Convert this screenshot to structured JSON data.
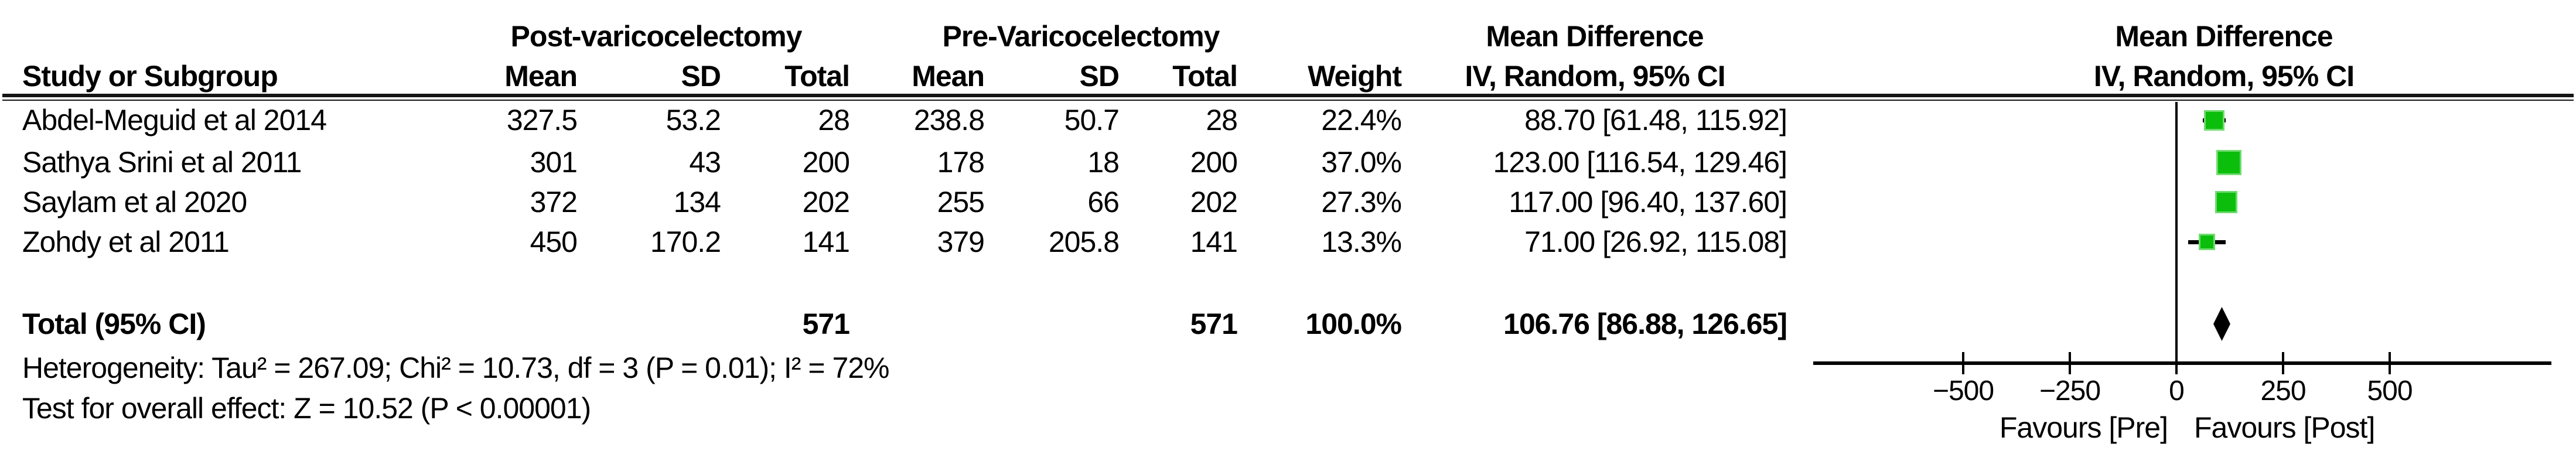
{
  "header": {
    "group_post": "Post-varicocelectomy",
    "group_pre": "Pre-Varicocelectomy",
    "study_col": "Study or Subgroup",
    "mean": "Mean",
    "sd": "SD",
    "total": "Total",
    "weight": "Weight",
    "md_title": "Mean Difference",
    "md_sub": "IV, Random, 95% CI",
    "plot_title": "Mean Difference",
    "plot_sub": "IV, Random, 95% CI"
  },
  "rows": [
    {
      "study": "Abdel-Meguid et al 2014",
      "mean1": "327.5",
      "sd1": "53.2",
      "total1": "28",
      "mean2": "238.8",
      "sd2": "50.7",
      "total2": "28",
      "weight": "22.4%",
      "ci": "88.70 [61.48, 115.92]"
    },
    {
      "study": "Sathya Srini et al 2011",
      "mean1": "301",
      "sd1": "43",
      "total1": "200",
      "mean2": "178",
      "sd2": "18",
      "total2": "200",
      "weight": "37.0%",
      "ci": "123.00 [116.54, 129.46]"
    },
    {
      "study": "Saylam et al 2020",
      "mean1": "372",
      "sd1": "134",
      "total1": "202",
      "mean2": "255",
      "sd2": "66",
      "total2": "202",
      "weight": "27.3%",
      "ci": "117.00 [96.40, 137.60]"
    },
    {
      "study": "Zohdy et al 2011",
      "mean1": "450",
      "sd1": "170.2",
      "total1": "141",
      "mean2": "379",
      "sd2": "205.8",
      "total2": "141",
      "weight": "13.3%",
      "ci": "71.00 [26.92, 115.08]"
    }
  ],
  "total_row": {
    "label": "Total (95% CI)",
    "total1": "571",
    "total2": "571",
    "weight": "100.0%",
    "ci": "106.76 [86.88, 126.65]"
  },
  "footer": {
    "heterogeneity": "Heterogeneity: Tau² = 267.09; Chi² = 10.73, df = 3 (P = 0.01); I² = 72%",
    "overall_effect": "Test for overall effect: Z = 10.52 (P < 0.00001)"
  },
  "axis_labels": {
    "favours_left": "Favours [Pre]",
    "favours_right": "Favours [Post]"
  },
  "chart_data": {
    "type": "forest",
    "effect_measure": "Mean Difference, IV, Random, 95% CI",
    "studies": [
      {
        "label": "Abdel-Meguid et al 2014",
        "md": 88.7,
        "ci_low": 61.48,
        "ci_high": 115.92,
        "weight": 22.4
      },
      {
        "label": "Sathya Srini et al 2011",
        "md": 123.0,
        "ci_low": 116.54,
        "ci_high": 129.46,
        "weight": 37.0
      },
      {
        "label": "Saylam et al 2020",
        "md": 117.0,
        "ci_low": 96.4,
        "ci_high": 137.6,
        "weight": 27.3
      },
      {
        "label": "Zohdy et al 2011",
        "md": 71.0,
        "ci_low": 26.92,
        "ci_high": 115.08,
        "weight": 13.3
      }
    ],
    "total": {
      "md": 106.76,
      "ci_low": 86.88,
      "ci_high": 126.65,
      "weight": 100.0,
      "n_post": 571,
      "n_pre": 571
    },
    "heterogeneity": {
      "tau2": 267.09,
      "chi2": 10.73,
      "df": 3,
      "p": 0.01,
      "i2_pct": 72
    },
    "overall_effect": {
      "z": 10.52,
      "p": "< 0.00001"
    },
    "axis": {
      "ticks": [
        -500,
        -250,
        0,
        250,
        500
      ],
      "xlim": [
        -851,
        879
      ],
      "zero_line": 0
    },
    "favours": [
      "Favours [Pre]",
      "Favours [Post]"
    ],
    "colors": {
      "square": "#0CBE0C",
      "square_halo": "#6FDB6F",
      "ci_line": "#000000",
      "diamond": "#000000",
      "axis": "#000000"
    }
  }
}
